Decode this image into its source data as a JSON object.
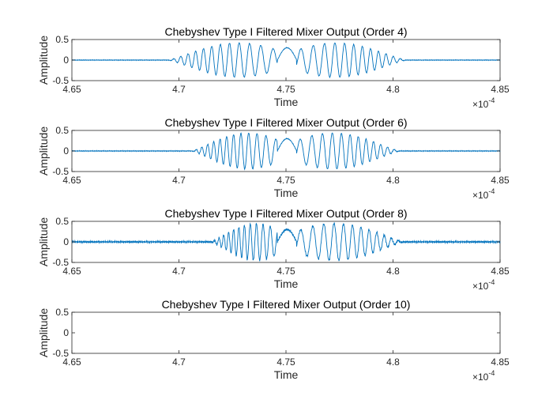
{
  "chart_data": [
    {
      "type": "line",
      "title": "Chebyshev Type I Filtered Mixer Output (Order 4)",
      "xlabel": "Time",
      "ylabel": "Amplitude",
      "xlim": [
        4.65,
        4.85
      ],
      "ylim": [
        -0.5,
        0.5
      ],
      "x_exponent": "×10",
      "x_exponent_power": "-4",
      "xticks": [
        "4.65",
        "4.7",
        "4.75",
        "4.8",
        "4.85"
      ],
      "yticks": [
        "0.5",
        "0",
        "-0.5"
      ],
      "signal": {
        "center": 4.7505,
        "envelope_start": 4.695,
        "envelope_end": 4.806,
        "peak_amplitude": 0.42,
        "center_bump": 0.3,
        "center_halfwidth": 0.0045,
        "baseline_noise": 0.01,
        "carrier_cycles": 8,
        "chirp": 0.6
      },
      "series": [
        {
          "name": "Order 4",
          "color": "#0072BD"
        }
      ]
    },
    {
      "type": "line",
      "title": "Chebyshev Type I Filtered Mixer Output (Order 6)",
      "xlabel": "Time",
      "ylabel": "Amplitude",
      "xlim": [
        4.65,
        4.85
      ],
      "ylim": [
        -0.5,
        0.5
      ],
      "x_exponent": "×10",
      "x_exponent_power": "-4",
      "xticks": [
        "4.65",
        "4.7",
        "4.75",
        "4.8",
        "4.85"
      ],
      "yticks": [
        "0.5",
        "0",
        "-0.5"
      ],
      "signal": {
        "center": 4.7505,
        "envelope_start": 4.706,
        "envelope_end": 4.803,
        "peak_amplitude": 0.44,
        "center_bump": 0.3,
        "center_halfwidth": 0.0045,
        "baseline_noise": 0.012,
        "carrier_cycles": 8,
        "chirp": 0.6
      },
      "series": [
        {
          "name": "Order 6",
          "color": "#0072BD"
        }
      ]
    },
    {
      "type": "line",
      "title": "Chebyshev Type I Filtered Mixer Output (Order 8)",
      "xlabel": "Time",
      "ylabel": "Amplitude",
      "xlim": [
        4.65,
        4.85
      ],
      "ylim": [
        -0.5,
        0.5
      ],
      "x_exponent": "×10",
      "x_exponent_power": "-4",
      "xticks": [
        "4.65",
        "4.7",
        "4.75",
        "4.8",
        "4.85"
      ],
      "yticks": [
        "0.5",
        "0",
        "-0.5"
      ],
      "signal": {
        "center": 4.7505,
        "envelope_start": 4.715,
        "envelope_end": 4.805,
        "peak_amplitude": 0.45,
        "center_bump": 0.3,
        "center_halfwidth": 0.0045,
        "baseline_noise": 0.03,
        "carrier_cycles": 8,
        "chirp": 0.6
      },
      "series": [
        {
          "name": "Order 8",
          "color": "#0072BD"
        }
      ]
    },
    {
      "type": "line",
      "title": "Chebyshev Type I Filtered Mixer Output (Order 10)",
      "xlabel": "Time",
      "ylabel": "Amplitude",
      "xlim": [
        4.65,
        4.85
      ],
      "ylim": [
        -0.5,
        0.5
      ],
      "x_exponent": "×10",
      "x_exponent_power": "-4",
      "xticks": [
        "4.65",
        "4.7",
        "4.75",
        "4.8",
        "4.85"
      ],
      "yticks": [
        "0.5",
        "0",
        "-0.5"
      ],
      "signal": null,
      "series": []
    }
  ]
}
